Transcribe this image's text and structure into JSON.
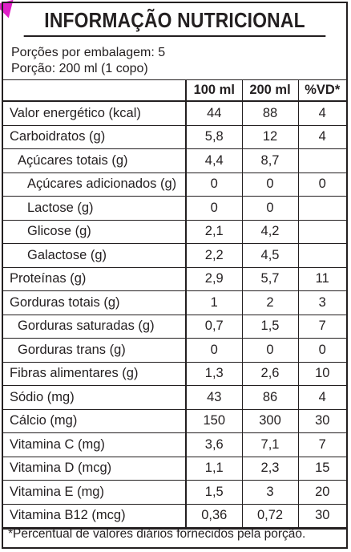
{
  "title": "INFORMAÇÃO NUTRICIONAL",
  "servings_per_package": "Porções por embalagem: 5",
  "serving_size": "Porção: 200 ml (1 copo)",
  "columns": [
    "100 ml",
    "200 ml",
    "%VD*"
  ],
  "rows": [
    {
      "label": "Valor energético (kcal)",
      "level": 0,
      "v100": "44",
      "v200": "88",
      "vd": "4"
    },
    {
      "label": "Carboidratos (g)",
      "level": 0,
      "v100": "5,8",
      "v200": "12",
      "vd": "4"
    },
    {
      "label": "Açúcares totais (g)",
      "level": 1,
      "v100": "4,4",
      "v200": "8,7",
      "vd": ""
    },
    {
      "label": "Açúcares adicionados (g)",
      "level": 2,
      "v100": "0",
      "v200": "0",
      "vd": "0"
    },
    {
      "label": "Lactose (g)",
      "level": 2,
      "v100": "0",
      "v200": "0",
      "vd": ""
    },
    {
      "label": "Glicose (g)",
      "level": 2,
      "v100": "2,1",
      "v200": "4,2",
      "vd": ""
    },
    {
      "label": "Galactose (g)",
      "level": 2,
      "v100": "2,2",
      "v200": "4,5",
      "vd": ""
    },
    {
      "label": "Proteínas (g)",
      "level": 0,
      "v100": "2,9",
      "v200": "5,7",
      "vd": "11"
    },
    {
      "label": "Gorduras totais (g)",
      "level": 0,
      "v100": "1",
      "v200": "2",
      "vd": "3"
    },
    {
      "label": "Gorduras saturadas (g)",
      "level": 1,
      "v100": "0,7",
      "v200": "1,5",
      "vd": "7"
    },
    {
      "label": "Gorduras trans (g)",
      "level": 1,
      "v100": "0",
      "v200": "0",
      "vd": "0"
    },
    {
      "label": "Fibras alimentares (g)",
      "level": 0,
      "v100": "1,3",
      "v200": "2,6",
      "vd": "10"
    },
    {
      "label": "Sódio (mg)",
      "level": 0,
      "v100": "43",
      "v200": "86",
      "vd": "4"
    },
    {
      "label": "Cálcio (mg)",
      "level": 0,
      "v100": "150",
      "v200": "300",
      "vd": "30"
    },
    {
      "label": "Vitamina C (mg)",
      "level": 0,
      "v100": "3,6",
      "v200": "7,1",
      "vd": "7"
    },
    {
      "label": "Vitamina D (mcg)",
      "level": 0,
      "v100": "1,1",
      "v200": "2,3",
      "vd": "15"
    },
    {
      "label": "Vitamina E (mg)",
      "level": 0,
      "v100": "1,5",
      "v200": "3",
      "vd": "20"
    },
    {
      "label": "Vitamina B12 (mcg)",
      "level": 0,
      "v100": "0,36",
      "v200": "0,72",
      "vd": "30"
    }
  ],
  "footnote": "*Percentual de valores diários fornecidos pela porção.",
  "colors": {
    "ink": "#231f20",
    "corner_mark": "#e020c8"
  }
}
